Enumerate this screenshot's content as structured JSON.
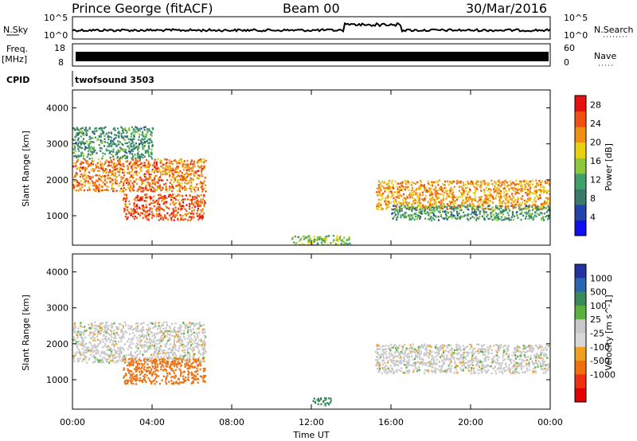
{
  "header": {
    "station": "Prince George (fitACF)",
    "beam": "Beam 00",
    "date": "30/Mar/2016"
  },
  "noise_panel": {
    "left_label": "N.Sky",
    "right_label": "N.Search",
    "left_ticks": [
      "10^5",
      "10^0"
    ],
    "right_ticks": [
      "10^5",
      "10^0"
    ]
  },
  "freq_panel": {
    "left_label_1": "Freq.",
    "left_label_2": "[MHz]",
    "right_label": "Nave",
    "left_ticks": [
      "18",
      "8"
    ],
    "right_ticks": [
      "60",
      "0"
    ]
  },
  "cpid_panel": {
    "label": "CPID",
    "program": "twofsound  3503"
  },
  "colors": {
    "power_scale": [
      "#1010ee",
      "#2244a8",
      "#3a7a6a",
      "#3fa06a",
      "#8cc83c",
      "#e8d010",
      "#f09010",
      "#f05010",
      "#e81010"
    ],
    "velocity_scale": [
      "#2233a0",
      "#2a66b0",
      "#3a8a5a",
      "#5ab040",
      "#c8c8c8",
      "#d8d8d8",
      "#f0a020",
      "#f07010",
      "#f03010",
      "#e00000"
    ]
  },
  "chart_data": [
    {
      "type": "heatmap",
      "title": "",
      "xlabel": "",
      "ylabel": "Slant Range [km]",
      "xlim": [
        "00:00",
        "24:00"
      ],
      "x_ticks": [
        "00:00",
        "04:00",
        "08:00",
        "12:00",
        "16:00",
        "20:00",
        "00:00"
      ],
      "ylim": [
        180,
        4500
      ],
      "y_ticks": [
        1000,
        2000,
        3000,
        4000
      ],
      "colorbar": {
        "label": "Power [dB]",
        "ticks": [
          4,
          8,
          12,
          16,
          20,
          24,
          28
        ],
        "range": [
          0,
          30
        ]
      },
      "grid": false,
      "echo_regions": [
        {
          "t_start": 0.0,
          "t_end": 6.6,
          "range_start_km": 1700,
          "range_end_km": 2600,
          "power_db": 24
        },
        {
          "t_start": 2.5,
          "t_end": 6.6,
          "range_start_km": 900,
          "range_end_km": 1600,
          "power_db": 26
        },
        {
          "t_start": 0.0,
          "t_end": 4.0,
          "range_start_km": 2600,
          "range_end_km": 3500,
          "power_db": 10
        },
        {
          "t_start": 15.2,
          "t_end": 24.0,
          "range_start_km": 1200,
          "range_end_km": 2000,
          "power_db": 22
        },
        {
          "t_start": 16.0,
          "t_end": 24.0,
          "range_start_km": 900,
          "range_end_km": 1300,
          "power_db": 10
        },
        {
          "t_start": 11.0,
          "t_end": 14.0,
          "range_start_km": 200,
          "range_end_km": 450,
          "power_db": 14
        }
      ]
    },
    {
      "type": "heatmap",
      "title": "",
      "xlabel": "Time UT",
      "ylabel": "Slant Range [km]",
      "xlim": [
        "00:00",
        "24:00"
      ],
      "x_ticks": [
        "00:00",
        "04:00",
        "08:00",
        "12:00",
        "16:00",
        "20:00",
        "00:00"
      ],
      "ylim": [
        180,
        4500
      ],
      "y_ticks": [
        1000,
        2000,
        3000,
        4000
      ],
      "colorbar": {
        "label": "Velocity [m s^-1]",
        "ticks": [
          "1000",
          "500",
          "100",
          "25",
          "-25",
          "-100",
          "-500",
          "-1000"
        ]
      },
      "grid": false,
      "echo_regions": [
        {
          "t_start": 0.0,
          "t_end": 6.6,
          "range_start_km": 1500,
          "range_end_km": 2600,
          "velocity_ms": 0
        },
        {
          "t_start": 2.5,
          "t_end": 6.6,
          "range_start_km": 900,
          "range_end_km": 1600,
          "velocity_ms": -150
        },
        {
          "t_start": 15.2,
          "t_end": 24.0,
          "range_start_km": 1200,
          "range_end_km": 2000,
          "velocity_ms": 0
        },
        {
          "t_start": 12.0,
          "t_end": 13.0,
          "range_start_km": 300,
          "range_end_km": 500,
          "velocity_ms": 150
        }
      ]
    }
  ]
}
